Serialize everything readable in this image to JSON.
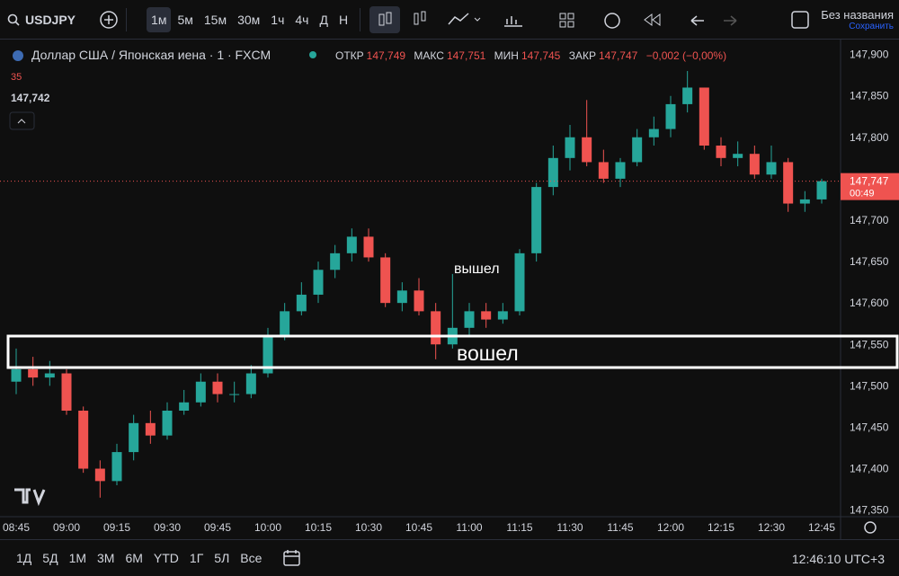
{
  "toolbar": {
    "symbol": "USDJPY",
    "intervals": [
      "1м",
      "5м",
      "15м",
      "30м",
      "1ч",
      "4ч",
      "Д",
      "Н"
    ],
    "layout_name": "Без названия",
    "save": "Сохранить"
  },
  "legend": {
    "title": "Доллар США / Японская иена · 1 · FXCM",
    "open_label": "ОТКР",
    "open": "147,749",
    "high_label": "МАКС",
    "high": "147,751",
    "low_label": "МИН",
    "low": "147,745",
    "close_label": "ЗАКР",
    "close": "147,747",
    "change": "−0,002 (−0,00%)",
    "volume": "35",
    "indicator": "147,742"
  },
  "chart_data": {
    "type": "candlestick",
    "x": [
      "08:45",
      "08:50",
      "08:55",
      "09:00",
      "09:05",
      "09:10",
      "09:15",
      "09:20",
      "09:25",
      "09:30",
      "09:35",
      "09:40",
      "09:45",
      "09:50",
      "09:55",
      "10:00",
      "10:05",
      "10:10",
      "10:15",
      "10:20",
      "10:25",
      "10:30",
      "10:35",
      "10:40",
      "10:45",
      "10:50",
      "10:55",
      "11:00",
      "11:05",
      "11:10",
      "11:15",
      "11:20",
      "11:25",
      "11:30",
      "11:35",
      "11:40",
      "11:45",
      "11:50",
      "11:55",
      "12:00",
      "12:05",
      "12:10",
      "12:15",
      "12:20",
      "12:25",
      "12:30",
      "12:35",
      "12:40",
      "12:45"
    ],
    "open": [
      147.505,
      147.52,
      147.51,
      147.515,
      147.47,
      147.4,
      147.385,
      147.42,
      147.455,
      147.44,
      147.47,
      147.48,
      147.505,
      147.49,
      147.49,
      147.515,
      147.56,
      147.59,
      147.61,
      147.64,
      147.66,
      147.68,
      147.655,
      147.6,
      147.615,
      147.59,
      147.55,
      147.57,
      147.59,
      147.58,
      147.59,
      147.66,
      147.74,
      147.775,
      147.8,
      147.77,
      147.75,
      147.77,
      147.8,
      147.81,
      147.84,
      147.86,
      147.79,
      147.775,
      147.78,
      147.755,
      147.77,
      147.72,
      147.725
    ],
    "high": [
      147.545,
      147.535,
      147.53,
      147.52,
      147.475,
      147.41,
      147.43,
      147.465,
      147.47,
      147.48,
      147.495,
      147.515,
      147.515,
      147.505,
      147.525,
      147.57,
      147.6,
      147.625,
      147.65,
      147.67,
      147.69,
      147.69,
      147.66,
      147.625,
      147.63,
      147.6,
      147.635,
      147.6,
      147.6,
      147.6,
      147.665,
      147.745,
      147.79,
      147.815,
      147.845,
      147.785,
      147.775,
      147.81,
      147.825,
      147.85,
      147.88,
      147.86,
      147.8,
      147.795,
      147.79,
      147.79,
      147.775,
      147.735,
      147.75
    ],
    "low": [
      147.49,
      147.5,
      147.5,
      147.465,
      147.395,
      147.365,
      147.38,
      147.41,
      147.43,
      147.435,
      147.465,
      147.475,
      147.48,
      147.48,
      147.485,
      147.51,
      147.555,
      147.585,
      147.6,
      147.63,
      147.65,
      147.65,
      147.595,
      147.59,
      147.585,
      147.532,
      147.545,
      147.56,
      147.57,
      147.575,
      147.585,
      147.65,
      147.73,
      147.76,
      147.765,
      147.745,
      147.74,
      147.765,
      147.79,
      147.8,
      147.83,
      147.785,
      147.765,
      147.765,
      147.75,
      147.75,
      147.71,
      147.71,
      147.72
    ],
    "close": [
      147.52,
      147.51,
      147.515,
      147.47,
      147.4,
      147.385,
      147.42,
      147.455,
      147.44,
      147.47,
      147.48,
      147.505,
      147.49,
      147.49,
      147.515,
      147.56,
      147.59,
      147.61,
      147.64,
      147.66,
      147.68,
      147.655,
      147.6,
      147.615,
      147.59,
      147.55,
      147.57,
      147.59,
      147.58,
      147.59,
      147.66,
      147.74,
      147.775,
      147.8,
      147.77,
      147.75,
      147.77,
      147.8,
      147.81,
      147.84,
      147.86,
      147.79,
      147.775,
      147.78,
      147.755,
      147.77,
      147.72,
      147.725,
      147.747
    ],
    "up_color": "#26a69a",
    "down_color": "#ef5350",
    "ylim": [
      147.342,
      147.918
    ],
    "yticks": [
      {
        "value": 147.35,
        "label": "147,350"
      },
      {
        "value": 147.4,
        "label": "147,400"
      },
      {
        "value": 147.45,
        "label": "147,450"
      },
      {
        "value": 147.5,
        "label": "147,500"
      },
      {
        "value": 147.55,
        "label": "147,550"
      },
      {
        "value": 147.6,
        "label": "147,600"
      },
      {
        "value": 147.65,
        "label": "147,650"
      },
      {
        "value": 147.7,
        "label": "147,700"
      },
      {
        "value": 147.75,
        "label": "147,750"
      },
      {
        "value": 147.8,
        "label": "147,800"
      },
      {
        "value": 147.85,
        "label": "147,850"
      },
      {
        "value": 147.9,
        "label": "147,900"
      }
    ],
    "xticks": [
      "08:45",
      "09:00",
      "09:15",
      "09:30",
      "09:45",
      "10:00",
      "10:15",
      "10:30",
      "10:45",
      "11:00",
      "11:15",
      "11:30",
      "11:45",
      "12:00",
      "12:15",
      "12:30",
      "12:45"
    ],
    "grid": false,
    "last_price": {
      "value": 147.747,
      "label": "147,747"
    },
    "countdown": "00:49",
    "annotations": [
      "вышел",
      "вошел"
    ]
  },
  "bottom_bar": {
    "ranges": [
      "1Д",
      "5Д",
      "1М",
      "3М",
      "6М",
      "YTD",
      "1Г",
      "5Л",
      "Все"
    ],
    "clock": "12:46:10 UTC+3"
  }
}
